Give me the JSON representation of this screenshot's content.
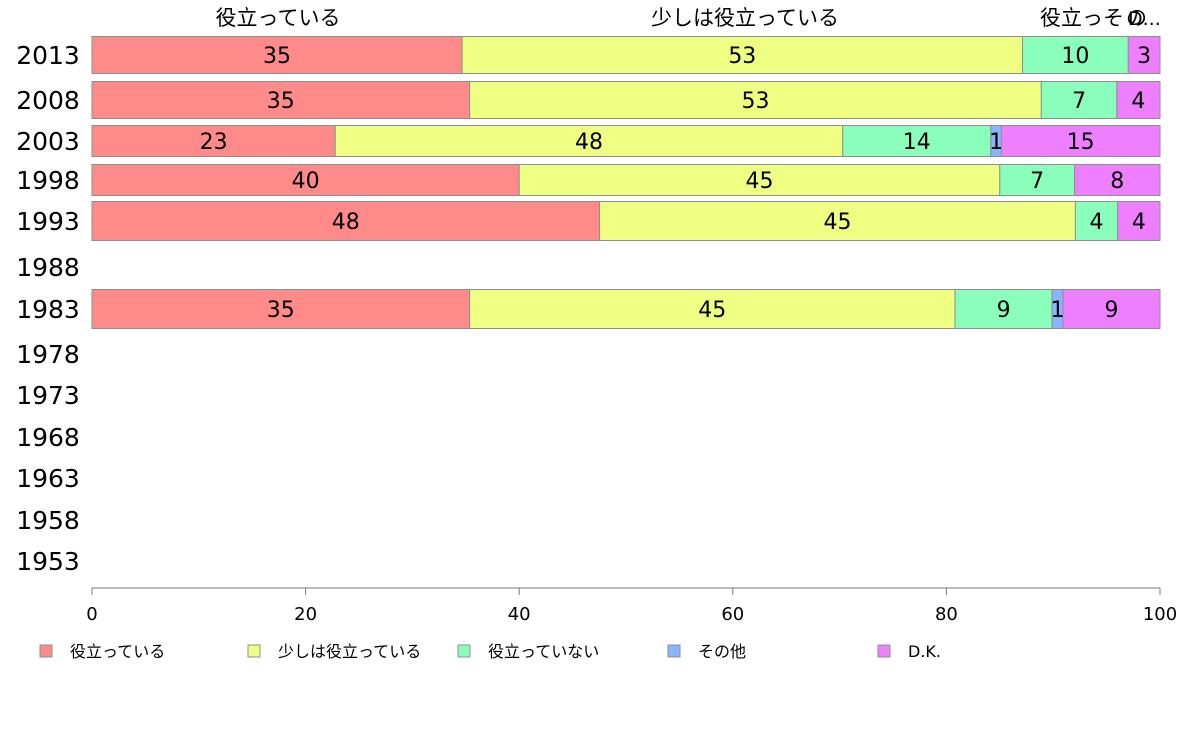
{
  "chart_data": {
    "type": "bar",
    "orientation": "horizontal",
    "stacked": true,
    "categories": [
      "2013",
      "2008",
      "2003",
      "1998",
      "1993",
      "1988",
      "1983",
      "1978",
      "1973",
      "1968",
      "1963",
      "1958",
      "1953"
    ],
    "series": [
      {
        "name": "役立っている",
        "color": "#ff8a8a",
        "values": [
          35,
          35,
          23,
          40,
          48,
          null,
          35,
          null,
          null,
          null,
          null,
          null,
          null
        ],
        "show_labels": [
          true,
          true,
          true,
          true,
          true,
          false,
          true,
          false,
          false,
          false,
          false,
          false,
          false
        ]
      },
      {
        "name": "少しは役立っている",
        "color": "#eeff82",
        "values": [
          53,
          53,
          48,
          45,
          45,
          null,
          45,
          null,
          null,
          null,
          null,
          null,
          null
        ],
        "show_labels": [
          true,
          true,
          true,
          true,
          true,
          false,
          true,
          false,
          false,
          false,
          false,
          false,
          false
        ]
      },
      {
        "name": "役立っていない",
        "color": "#8affbc",
        "values": [
          10,
          7,
          14,
          7,
          4,
          null,
          9,
          null,
          null,
          null,
          null,
          null,
          null
        ],
        "show_labels": [
          true,
          true,
          true,
          true,
          true,
          false,
          true,
          false,
          false,
          false,
          false,
          false,
          false
        ]
      },
      {
        "name": "その他",
        "color": "#86b6ff",
        "values": [
          0,
          0,
          1,
          0,
          0,
          null,
          1,
          null,
          null,
          null,
          null,
          null,
          null
        ],
        "show_labels": [
          false,
          false,
          true,
          false,
          false,
          false,
          true,
          false,
          false,
          false,
          false,
          false,
          false
        ]
      },
      {
        "name": "D.K.",
        "color": "#ee80ff",
        "values": [
          3,
          4,
          15,
          8,
          4,
          null,
          9,
          null,
          null,
          null,
          null,
          null,
          null
        ],
        "show_labels": [
          true,
          true,
          true,
          true,
          true,
          false,
          true,
          false,
          false,
          false,
          false,
          false,
          false
        ]
      }
    ],
    "top_labels": [
      "役立っている",
      "少しは役立っている",
      "役立っそ",
      "の",
      "D..."
    ],
    "x_ticks": [
      "0",
      "20",
      "40",
      "60",
      "80",
      "100"
    ],
    "xlim": [
      0,
      100
    ],
    "legend": [
      "役立っている",
      "少しは役立っている",
      "役立っていない",
      "その他",
      "D.K."
    ],
    "legend_position": "bottom"
  }
}
